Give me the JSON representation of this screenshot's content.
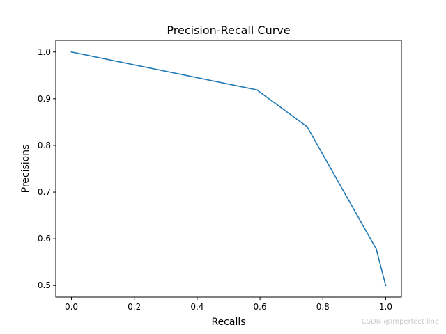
{
  "chart_data": {
    "type": "line",
    "title": "Precision-Recall Curve",
    "xlabel": "Recalls",
    "ylabel": "Precisions",
    "xlim": [
      -0.05,
      1.05
    ],
    "ylim": [
      0.475,
      1.025
    ],
    "xticks": [
      0.0,
      0.2,
      0.4,
      0.6,
      0.8,
      1.0
    ],
    "xtick_labels": [
      "0.0",
      "0.2",
      "0.4",
      "0.6",
      "0.8",
      "1.0"
    ],
    "yticks": [
      0.5,
      0.6,
      0.7,
      0.8,
      0.9,
      1.0
    ],
    "ytick_labels": [
      "0.5",
      "0.6",
      "0.7",
      "0.8",
      "0.9",
      "1.0"
    ],
    "grid": false,
    "series": [
      {
        "x": [
          0.0,
          0.59,
          0.75,
          0.97,
          1.0
        ],
        "y": [
          1.0,
          0.919,
          0.84,
          0.578,
          0.5
        ],
        "color": "#1f77b4"
      }
    ]
  },
  "watermark": "CSDN @Imperfect line"
}
